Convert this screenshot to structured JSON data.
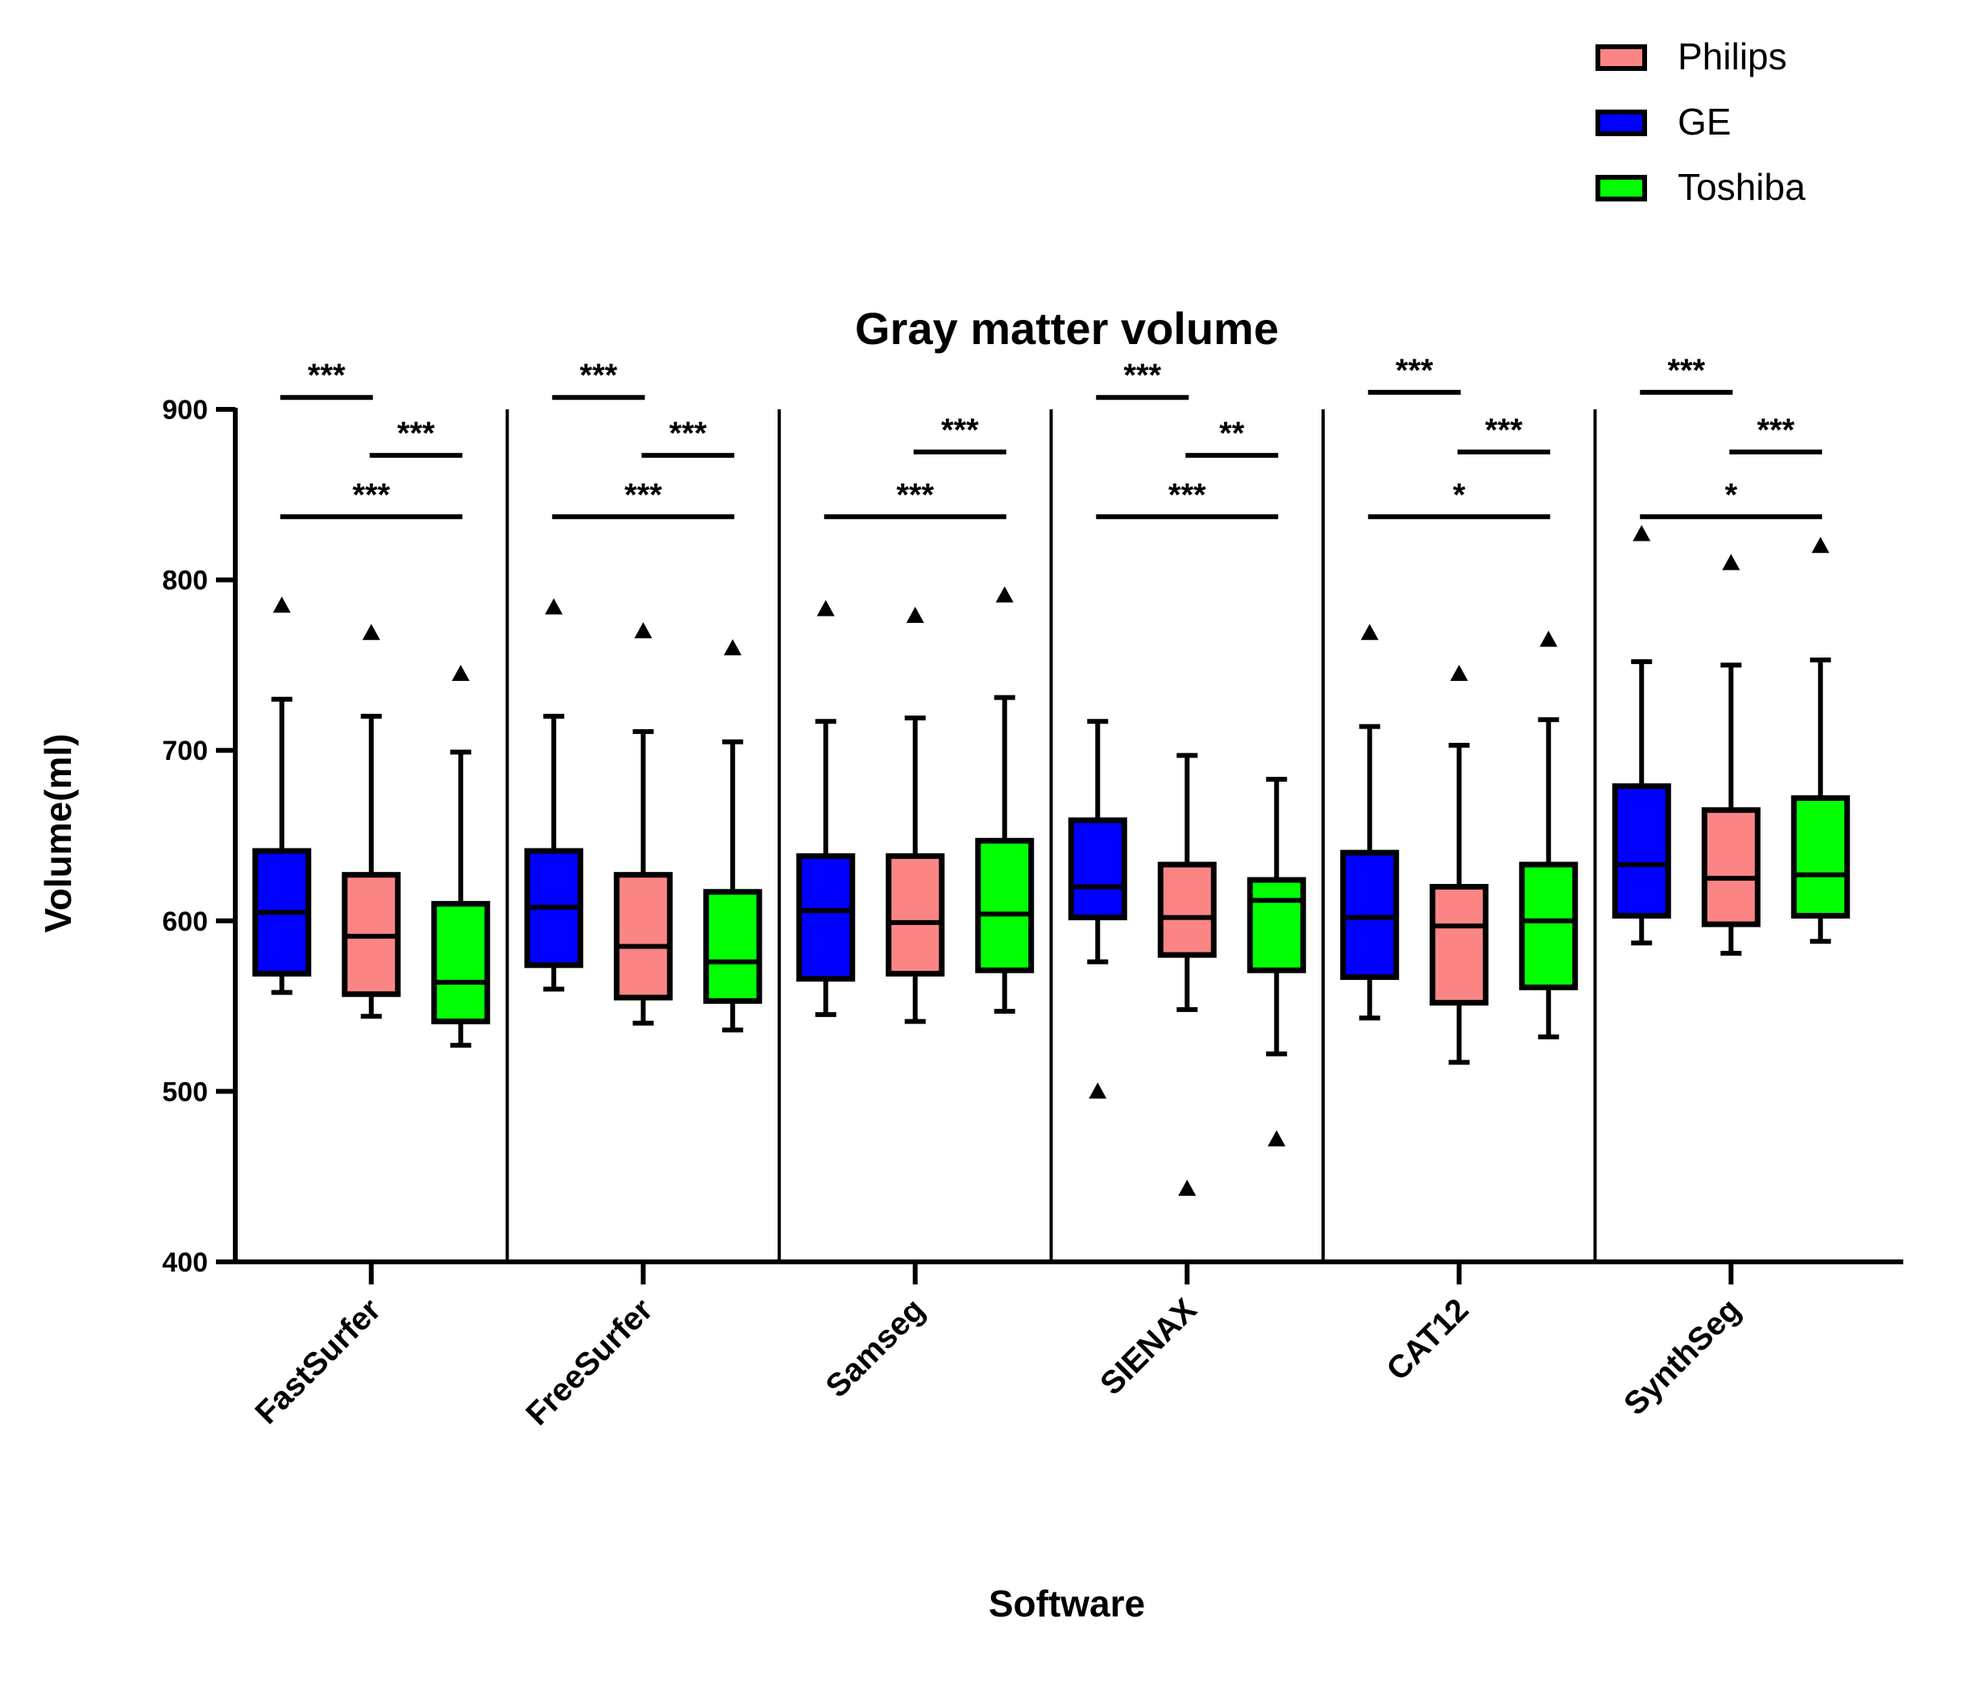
{
  "chart_data": {
    "type": "box",
    "title": "Gray matter volume",
    "xlabel": "Software",
    "ylabel": "Volume(ml)",
    "ylim": [
      400,
      900
    ],
    "yticks": [
      "400",
      "500",
      "600",
      "700",
      "800",
      "900"
    ],
    "legend": {
      "position": "top-right",
      "entries": [
        {
          "name": "Philips",
          "color": "#fb8585"
        },
        {
          "name": "GE",
          "color": "#0000ff"
        },
        {
          "name": "Toshiba",
          "color": "#00ff00"
        }
      ]
    },
    "box_order": [
      "GE",
      "Philips",
      "Toshiba"
    ],
    "series_colors": {
      "GE": "#0000ff",
      "Philips": "#fb8585",
      "Toshiba": "#00ff00"
    },
    "groups": [
      {
        "category": "FastSurfer",
        "boxes": [
          {
            "scanner": "GE",
            "whisker_low": 558,
            "q1": 569,
            "median": 605,
            "q3": 641,
            "whisker_high": 730,
            "outliers": [
              785
            ]
          },
          {
            "scanner": "Philips",
            "whisker_low": 544,
            "q1": 557,
            "median": 591,
            "q3": 627,
            "whisker_high": 720,
            "outliers": [
              769
            ]
          },
          {
            "scanner": "Toshiba",
            "whisker_low": 527,
            "q1": 541,
            "median": 564,
            "q3": 610,
            "whisker_high": 699,
            "outliers": [
              745
            ]
          }
        ],
        "comparisons": [
          {
            "from": 0,
            "to": 1,
            "label": "***",
            "y": 907
          },
          {
            "from": 1,
            "to": 2,
            "label": "***",
            "y": 873
          },
          {
            "from": 0,
            "to": 2,
            "label": "***",
            "y": 837
          }
        ]
      },
      {
        "category": "FreeSurfer",
        "boxes": [
          {
            "scanner": "GE",
            "whisker_low": 560,
            "q1": 574,
            "median": 608,
            "q3": 641,
            "whisker_high": 720,
            "outliers": [
              784
            ]
          },
          {
            "scanner": "Philips",
            "whisker_low": 540,
            "q1": 555,
            "median": 585,
            "q3": 627,
            "whisker_high": 711,
            "outliers": [
              770
            ]
          },
          {
            "scanner": "Toshiba",
            "whisker_low": 536,
            "q1": 553,
            "median": 576,
            "q3": 617,
            "whisker_high": 705,
            "outliers": [
              760
            ]
          }
        ],
        "comparisons": [
          {
            "from": 0,
            "to": 1,
            "label": "***",
            "y": 907
          },
          {
            "from": 1,
            "to": 2,
            "label": "***",
            "y": 873
          },
          {
            "from": 0,
            "to": 2,
            "label": "***",
            "y": 837
          }
        ]
      },
      {
        "category": "Samseg",
        "boxes": [
          {
            "scanner": "GE",
            "whisker_low": 545,
            "q1": 566,
            "median": 606,
            "q3": 638,
            "whisker_high": 717,
            "outliers": [
              783
            ]
          },
          {
            "scanner": "Philips",
            "whisker_low": 541,
            "q1": 569,
            "median": 599,
            "q3": 638,
            "whisker_high": 719,
            "outliers": [
              779
            ]
          },
          {
            "scanner": "Toshiba",
            "whisker_low": 547,
            "q1": 571,
            "median": 604,
            "q3": 647,
            "whisker_high": 731,
            "outliers": [
              791
            ]
          }
        ],
        "comparisons": [
          {
            "from": 1,
            "to": 2,
            "label": "***",
            "y": 875
          },
          {
            "from": 0,
            "to": 2,
            "label": "***",
            "y": 837
          }
        ]
      },
      {
        "category": "SIENAX",
        "boxes": [
          {
            "scanner": "GE",
            "whisker_low": 576,
            "q1": 602,
            "median": 620,
            "q3": 659,
            "whisker_high": 717,
            "outliers": [
              500
            ]
          },
          {
            "scanner": "Philips",
            "whisker_low": 548,
            "q1": 580,
            "median": 602,
            "q3": 633,
            "whisker_high": 697,
            "outliers": [
              443
            ]
          },
          {
            "scanner": "Toshiba",
            "whisker_low": 522,
            "q1": 571,
            "median": 612,
            "q3": 624,
            "whisker_high": 683,
            "outliers": [
              472
            ]
          }
        ],
        "comparisons": [
          {
            "from": 0,
            "to": 1,
            "label": "***",
            "y": 907
          },
          {
            "from": 1,
            "to": 2,
            "label": "**",
            "y": 873
          },
          {
            "from": 0,
            "to": 2,
            "label": "***",
            "y": 837
          }
        ]
      },
      {
        "category": "CAT12",
        "boxes": [
          {
            "scanner": "GE",
            "whisker_low": 543,
            "q1": 567,
            "median": 602,
            "q3": 640,
            "whisker_high": 714,
            "outliers": [
              769
            ]
          },
          {
            "scanner": "Philips",
            "whisker_low": 517,
            "q1": 552,
            "median": 597,
            "q3": 620,
            "whisker_high": 703,
            "outliers": [
              745
            ]
          },
          {
            "scanner": "Toshiba",
            "whisker_low": 532,
            "q1": 561,
            "median": 600,
            "q3": 633,
            "whisker_high": 718,
            "outliers": [
              765
            ]
          }
        ],
        "comparisons": [
          {
            "from": 0,
            "to": 1,
            "label": "***",
            "y": 910
          },
          {
            "from": 1,
            "to": 2,
            "label": "***",
            "y": 875
          },
          {
            "from": 0,
            "to": 2,
            "label": "*",
            "y": 837
          }
        ]
      },
      {
        "category": "SynthSeg",
        "boxes": [
          {
            "scanner": "GE",
            "whisker_low": 587,
            "q1": 603,
            "median": 633,
            "q3": 679,
            "whisker_high": 752,
            "outliers": [
              827
            ]
          },
          {
            "scanner": "Philips",
            "whisker_low": 581,
            "q1": 598,
            "median": 625,
            "q3": 665,
            "whisker_high": 750,
            "outliers": [
              810
            ]
          },
          {
            "scanner": "Toshiba",
            "whisker_low": 588,
            "q1": 603,
            "median": 627,
            "q3": 672,
            "whisker_high": 753,
            "outliers": [
              820
            ]
          }
        ],
        "comparisons": [
          {
            "from": 0,
            "to": 1,
            "label": "***",
            "y": 910
          },
          {
            "from": 1,
            "to": 2,
            "label": "***",
            "y": 875
          },
          {
            "from": 0,
            "to": 2,
            "label": "*",
            "y": 837
          }
        ]
      }
    ]
  }
}
